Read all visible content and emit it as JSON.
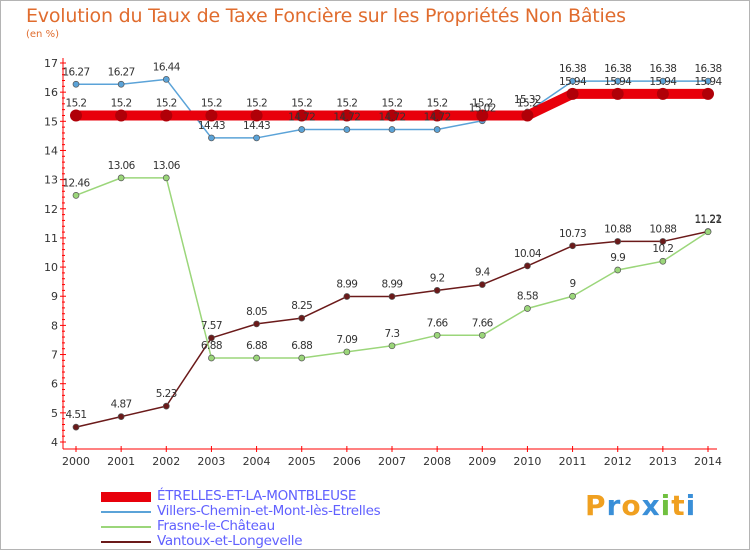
{
  "header": {
    "title": "Evolution du Taux de Taxe Foncière sur les Propriétés Non Bâties",
    "unit": "(en %)"
  },
  "logo": {
    "letters": [
      "P",
      "r",
      "o",
      "x",
      "i",
      "t",
      "i"
    ],
    "colors": [
      "#f0a020",
      "#3a8fd8",
      "#f0a020",
      "#3a8fd8",
      "#70c040",
      "#f0a020",
      "#3a8fd8"
    ]
  },
  "chart_data": {
    "type": "line",
    "title": "Evolution du Taux de Taxe Foncière sur les Propriétés Non Bâties",
    "ylabel": "(en %)",
    "xlabel": "",
    "ylim": [
      4,
      17
    ],
    "yticks": [
      "4",
      "5",
      "6",
      "7",
      "8",
      "9",
      "10",
      "11",
      "12",
      "13",
      "14",
      "15",
      "16",
      "17"
    ],
    "categories": [
      "2000",
      "2001",
      "2002",
      "2003",
      "2004",
      "2005",
      "2006",
      "2007",
      "2008",
      "2009",
      "2010",
      "2011",
      "2012",
      "2013",
      "2014"
    ],
    "grid": false,
    "legend": "bottom-left",
    "series": [
      {
        "name": "ÉTRELLES-ET-LA-MONTBLEUSE",
        "color": "#e8000b",
        "values": [
          15.2,
          15.2,
          15.2,
          15.2,
          15.2,
          15.2,
          15.2,
          15.2,
          15.2,
          15.2,
          15.2,
          15.94,
          15.94,
          15.94,
          15.94
        ],
        "labels": [
          "15.2",
          "15.2",
          "15.2",
          "15.2",
          "15.2",
          "15.2",
          "15.2",
          "15.2",
          "15.2",
          "15.2",
          "15.2",
          "15.94",
          "15.94",
          "15.94",
          "15.94"
        ]
      },
      {
        "name": "Villers-Chemin-et-Mont-lès-Etrelles",
        "color": "#5ba3d8",
        "values": [
          16.27,
          16.27,
          16.44,
          14.43,
          14.43,
          14.72,
          14.72,
          14.72,
          14.72,
          15.02,
          15.32,
          16.38,
          16.38,
          16.38,
          16.38
        ],
        "labels": [
          "16.27",
          "16.27",
          "16.44",
          "14.43",
          "14.43",
          "14.72",
          "14.72",
          "14.72",
          "14.72",
          "15.02",
          "15.32",
          "16.38",
          "16.38",
          "16.38",
          "16.38"
        ]
      },
      {
        "name": "Frasne-le-Château",
        "color": "#9bd67a",
        "values": [
          12.46,
          13.06,
          13.06,
          6.88,
          6.88,
          6.88,
          7.09,
          7.3,
          7.66,
          7.66,
          8.58,
          9,
          9.9,
          10.2,
          11.21
        ],
        "labels": [
          "12.46",
          "13.06",
          "13.06",
          "6.88",
          "6.88",
          "6.88",
          "7.09",
          "7.3",
          "7.66",
          "7.66",
          "8.58",
          "9",
          "9.9",
          "10.2",
          "11.21"
        ]
      },
      {
        "name": "Vantoux-et-Longevelle",
        "color": "#6b1a1a",
        "values": [
          4.51,
          4.87,
          5.23,
          7.57,
          8.05,
          8.25,
          8.99,
          8.99,
          9.2,
          9.4,
          10.04,
          10.73,
          10.88,
          10.88,
          11.22
        ],
        "labels": [
          "4.51",
          "4.87",
          "5.23",
          "7.57",
          "8.05",
          "8.25",
          "8.99",
          "8.99",
          "9.2",
          "9.4",
          "10.04",
          "10.73",
          "10.88",
          "10.88",
          "11.22"
        ]
      }
    ]
  }
}
